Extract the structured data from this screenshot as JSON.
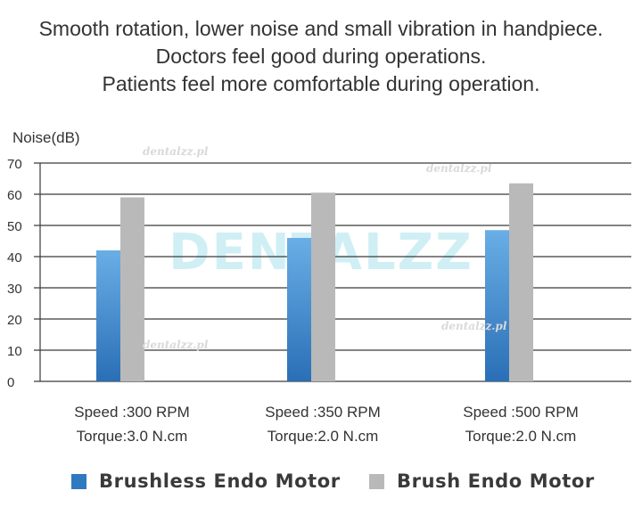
{
  "header": {
    "line1": "Smooth rotation, lower noise and small vibration in handpiece.",
    "line2": "Doctors feel good during operations.",
    "line3": "Patients feel more comfortable during operation."
  },
  "watermark": {
    "logo": "DENTALZZ",
    "small": "dentalzz.pl"
  },
  "colors": {
    "series1": "#3c86c8",
    "series2": "#b9b9b9",
    "grid": "#3a3a3a"
  },
  "chart_data": {
    "type": "bar",
    "ylabel": "Noise(dB)",
    "ylim": [
      0,
      70
    ],
    "yticks": [
      0,
      10,
      20,
      30,
      40,
      50,
      60,
      70
    ],
    "grid": true,
    "legend_position": "bottom",
    "categories": [
      {
        "speed": "Speed :300 RPM",
        "torque": "Torque:3.0 N.cm"
      },
      {
        "speed": "Speed :350 RPM",
        "torque": "Torque:2.0 N.cm"
      },
      {
        "speed": "Speed :500 RPM",
        "torque": "Torque:2.0 N.cm"
      }
    ],
    "series": [
      {
        "name": "Brushless Endo Motor",
        "values": [
          42,
          46,
          48.5
        ]
      },
      {
        "name": "Brush Endo Motor",
        "values": [
          59,
          60.5,
          63.5
        ]
      }
    ]
  }
}
